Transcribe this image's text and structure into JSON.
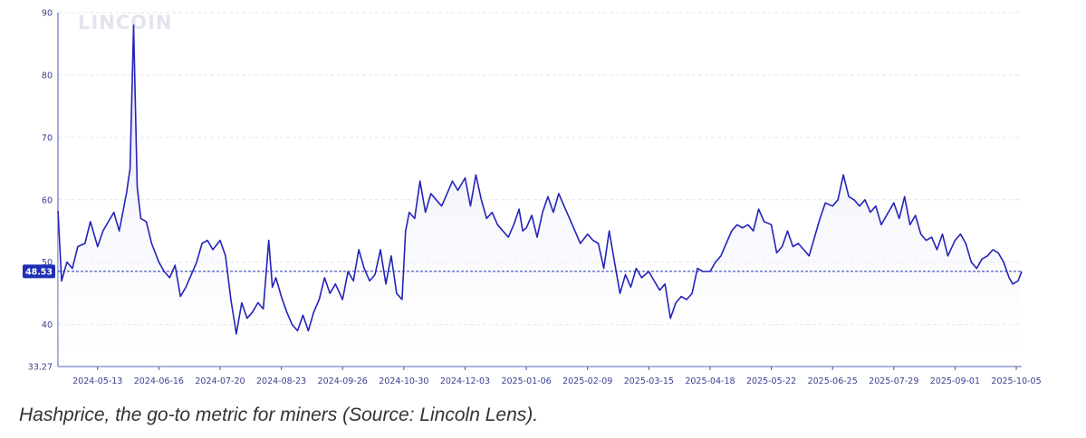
{
  "caption": "Hashprice, the go-to metric for miners (Source: Lincoln Lens).",
  "watermark": "LINCOIN",
  "colors": {
    "line": "#2424b8",
    "fill_top": "#dcdcf5",
    "grid": "#e2e4ee",
    "badge": "#1f2fb4"
  },
  "chart_data": {
    "type": "area",
    "ylim": [
      33.27,
      90
    ],
    "y_ticks": [
      90,
      80,
      70,
      60,
      50,
      40,
      33.27
    ],
    "y_tick_labels": [
      "90",
      "80",
      "70",
      "60",
      "50",
      "40",
      "33.27"
    ],
    "x_range": [
      "2024-04-21",
      "2025-10-08"
    ],
    "x_ticks": [
      "2024-05-13",
      "2024-06-16",
      "2024-07-20",
      "2024-08-23",
      "2024-09-26",
      "2024-10-30",
      "2024-12-03",
      "2025-01-06",
      "2025-02-09",
      "2025-03-15",
      "2025-04-18",
      "2025-05-22",
      "2025-06-25",
      "2025-07-29",
      "2025-09-01",
      "2025-10-05"
    ],
    "current_value": 48.53,
    "current_label": "48.53",
    "grid": true,
    "series": [
      {
        "points": [
          [
            "2024-04-21",
            58.2
          ],
          [
            "2024-04-23",
            47.0
          ],
          [
            "2024-04-26",
            50.0
          ],
          [
            "2024-04-29",
            49.0
          ],
          [
            "2024-05-02",
            52.5
          ],
          [
            "2024-05-06",
            53.0
          ],
          [
            "2024-05-09",
            56.5
          ],
          [
            "2024-05-13",
            52.5
          ],
          [
            "2024-05-16",
            55.0
          ],
          [
            "2024-05-19",
            56.5
          ],
          [
            "2024-05-22",
            58.0
          ],
          [
            "2024-05-25",
            55.0
          ],
          [
            "2024-05-27",
            58.0
          ],
          [
            "2024-05-29",
            61.0
          ],
          [
            "2024-05-31",
            65.0
          ],
          [
            "2024-06-02",
            88.0
          ],
          [
            "2024-06-04",
            62.0
          ],
          [
            "2024-06-06",
            57.0
          ],
          [
            "2024-06-09",
            56.5
          ],
          [
            "2024-06-12",
            53.0
          ],
          [
            "2024-06-16",
            50.0
          ],
          [
            "2024-06-19",
            48.5
          ],
          [
            "2024-06-22",
            47.5
          ],
          [
            "2024-06-25",
            49.5
          ],
          [
            "2024-06-28",
            44.5
          ],
          [
            "2024-07-01",
            46.0
          ],
          [
            "2024-07-04",
            48.0
          ],
          [
            "2024-07-07",
            50.0
          ],
          [
            "2024-07-10",
            53.0
          ],
          [
            "2024-07-13",
            53.5
          ],
          [
            "2024-07-16",
            52.0
          ],
          [
            "2024-07-20",
            53.5
          ],
          [
            "2024-07-23",
            51.0
          ],
          [
            "2024-07-26",
            44.0
          ],
          [
            "2024-07-29",
            38.5
          ],
          [
            "2024-08-01",
            43.5
          ],
          [
            "2024-08-04",
            41.0
          ],
          [
            "2024-08-07",
            42.0
          ],
          [
            "2024-08-10",
            43.5
          ],
          [
            "2024-08-13",
            42.5
          ],
          [
            "2024-08-16",
            53.5
          ],
          [
            "2024-08-18",
            46.0
          ],
          [
            "2024-08-20",
            47.5
          ],
          [
            "2024-08-23",
            44.5
          ],
          [
            "2024-08-26",
            42.0
          ],
          [
            "2024-08-29",
            40.0
          ],
          [
            "2024-09-01",
            39.0
          ],
          [
            "2024-09-04",
            41.5
          ],
          [
            "2024-09-07",
            39.0
          ],
          [
            "2024-09-10",
            42.0
          ],
          [
            "2024-09-13",
            44.0
          ],
          [
            "2024-09-16",
            47.5
          ],
          [
            "2024-09-19",
            45.0
          ],
          [
            "2024-09-22",
            46.5
          ],
          [
            "2024-09-26",
            44.0
          ],
          [
            "2024-09-29",
            48.5
          ],
          [
            "2024-10-02",
            47.0
          ],
          [
            "2024-10-05",
            52.0
          ],
          [
            "2024-10-08",
            49.0
          ],
          [
            "2024-10-11",
            47.0
          ],
          [
            "2024-10-14",
            48.0
          ],
          [
            "2024-10-17",
            52.0
          ],
          [
            "2024-10-20",
            46.5
          ],
          [
            "2024-10-23",
            51.0
          ],
          [
            "2024-10-26",
            45.0
          ],
          [
            "2024-10-29",
            44.0
          ],
          [
            "2024-10-31",
            55.0
          ],
          [
            "2024-11-02",
            58.0
          ],
          [
            "2024-11-05",
            57.0
          ],
          [
            "2024-11-08",
            63.0
          ],
          [
            "2024-11-11",
            58.0
          ],
          [
            "2024-11-14",
            61.0
          ],
          [
            "2024-11-17",
            60.0
          ],
          [
            "2024-11-20",
            59.0
          ],
          [
            "2024-11-23",
            61.0
          ],
          [
            "2024-11-26",
            63.0
          ],
          [
            "2024-11-29",
            61.5
          ],
          [
            "2024-12-03",
            63.5
          ],
          [
            "2024-12-06",
            59.0
          ],
          [
            "2024-12-09",
            64.0
          ],
          [
            "2024-12-12",
            60.0
          ],
          [
            "2024-12-15",
            57.0
          ],
          [
            "2024-12-18",
            58.0
          ],
          [
            "2024-12-21",
            56.0
          ],
          [
            "2024-12-24",
            55.0
          ],
          [
            "2024-12-27",
            54.0
          ],
          [
            "2024-12-30",
            56.0
          ],
          [
            "2025-01-02",
            58.5
          ],
          [
            "2025-01-04",
            55.0
          ],
          [
            "2025-01-06",
            55.5
          ],
          [
            "2025-01-09",
            57.5
          ],
          [
            "2025-01-12",
            54.0
          ],
          [
            "2025-01-15",
            58.0
          ],
          [
            "2025-01-18",
            60.5
          ],
          [
            "2025-01-21",
            58.0
          ],
          [
            "2025-01-24",
            61.0
          ],
          [
            "2025-01-27",
            59.0
          ],
          [
            "2025-01-30",
            57.0
          ],
          [
            "2025-02-02",
            55.0
          ],
          [
            "2025-02-05",
            53.0
          ],
          [
            "2025-02-09",
            54.5
          ],
          [
            "2025-02-12",
            53.5
          ],
          [
            "2025-02-15",
            53.0
          ],
          [
            "2025-02-18",
            49.0
          ],
          [
            "2025-02-21",
            55.0
          ],
          [
            "2025-02-24",
            50.0
          ],
          [
            "2025-02-27",
            45.0
          ],
          [
            "2025-03-02",
            48.0
          ],
          [
            "2025-03-05",
            46.0
          ],
          [
            "2025-03-08",
            49.0
          ],
          [
            "2025-03-11",
            47.5
          ],
          [
            "2025-03-15",
            48.5
          ],
          [
            "2025-03-18",
            47.0
          ],
          [
            "2025-03-21",
            45.5
          ],
          [
            "2025-03-24",
            46.5
          ],
          [
            "2025-03-27",
            41.0
          ],
          [
            "2025-03-30",
            43.5
          ],
          [
            "2025-04-02",
            44.5
          ],
          [
            "2025-04-05",
            44.0
          ],
          [
            "2025-04-08",
            45.0
          ],
          [
            "2025-04-11",
            49.0
          ],
          [
            "2025-04-14",
            48.5
          ],
          [
            "2025-04-18",
            48.5
          ],
          [
            "2025-04-21",
            50.0
          ],
          [
            "2025-04-24",
            51.0
          ],
          [
            "2025-04-27",
            53.0
          ],
          [
            "2025-04-30",
            55.0
          ],
          [
            "2025-05-03",
            56.0
          ],
          [
            "2025-05-06",
            55.5
          ],
          [
            "2025-05-09",
            56.0
          ],
          [
            "2025-05-12",
            55.0
          ],
          [
            "2025-05-15",
            58.5
          ],
          [
            "2025-05-18",
            56.5
          ],
          [
            "2025-05-22",
            56.0
          ],
          [
            "2025-05-25",
            51.5
          ],
          [
            "2025-05-28",
            52.5
          ],
          [
            "2025-05-31",
            55.0
          ],
          [
            "2025-06-03",
            52.5
          ],
          [
            "2025-06-06",
            53.0
          ],
          [
            "2025-06-09",
            52.0
          ],
          [
            "2025-06-12",
            51.0
          ],
          [
            "2025-06-15",
            54.0
          ],
          [
            "2025-06-18",
            57.0
          ],
          [
            "2025-06-21",
            59.5
          ],
          [
            "2025-06-25",
            59.0
          ],
          [
            "2025-06-28",
            60.0
          ],
          [
            "2025-07-01",
            64.0
          ],
          [
            "2025-07-04",
            60.5
          ],
          [
            "2025-07-07",
            60.0
          ],
          [
            "2025-07-10",
            59.0
          ],
          [
            "2025-07-13",
            60.0
          ],
          [
            "2025-07-16",
            58.0
          ],
          [
            "2025-07-19",
            59.0
          ],
          [
            "2025-07-22",
            56.0
          ],
          [
            "2025-07-25",
            57.5
          ],
          [
            "2025-07-29",
            59.5
          ],
          [
            "2025-08-01",
            57.0
          ],
          [
            "2025-08-04",
            60.5
          ],
          [
            "2025-08-07",
            56.0
          ],
          [
            "2025-08-10",
            57.5
          ],
          [
            "2025-08-13",
            54.5
          ],
          [
            "2025-08-16",
            53.5
          ],
          [
            "2025-08-19",
            54.0
          ],
          [
            "2025-08-22",
            52.0
          ],
          [
            "2025-08-25",
            54.5
          ],
          [
            "2025-08-28",
            51.0
          ],
          [
            "2025-09-01",
            53.5
          ],
          [
            "2025-09-04",
            54.5
          ],
          [
            "2025-09-07",
            53.0
          ],
          [
            "2025-09-10",
            50.0
          ],
          [
            "2025-09-13",
            49.0
          ],
          [
            "2025-09-16",
            50.5
          ],
          [
            "2025-09-19",
            51.0
          ],
          [
            "2025-09-22",
            52.0
          ],
          [
            "2025-09-25",
            51.5
          ],
          [
            "2025-09-28",
            50.0
          ],
          [
            "2025-10-01",
            47.5
          ],
          [
            "2025-10-03",
            46.5
          ],
          [
            "2025-10-06",
            47.0
          ],
          [
            "2025-10-08",
            48.5
          ]
        ]
      }
    ]
  }
}
